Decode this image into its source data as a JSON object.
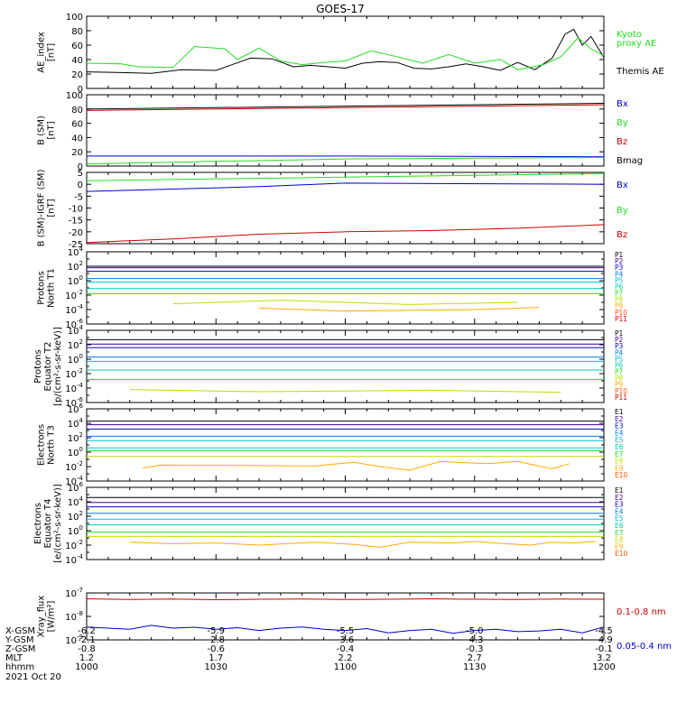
{
  "title": "GOES-17",
  "colors": {
    "black": "#000000",
    "red": "#cc0000",
    "green": "#22dd22",
    "blue": "#0000cc",
    "series": [
      "#000000",
      "#440088",
      "#0000cc",
      "#0077ee",
      "#00bbdd",
      "#00ccaa",
      "#22dd22",
      "#bbdd00",
      "#ffaa00",
      "#ff5500",
      "#cc0000"
    ]
  },
  "panels": [
    {
      "id": "ae",
      "ylabel": [
        "AE_index",
        "[nT]"
      ],
      "scale": "linear",
      "ylim": [
        0,
        100
      ],
      "yticks": [
        0,
        20,
        40,
        60,
        80,
        100
      ],
      "legend": [
        {
          "text": "Kyoto",
          "color": "#22dd22"
        },
        {
          "text": "proxy AE",
          "color": "#22dd22"
        },
        {
          "text": "Themis AE",
          "color": "#000000"
        }
      ]
    },
    {
      "id": "b",
      "ylabel": [
        "B (SM)",
        "[nT]"
      ],
      "scale": "linear",
      "ylim": [
        0,
        100
      ],
      "yticks": [
        0,
        20,
        40,
        60,
        80,
        100
      ],
      "legend": [
        {
          "text": "Bx",
          "color": "#0000cc"
        },
        {
          "text": "By",
          "color": "#22dd22"
        },
        {
          "text": "Bz",
          "color": "#cc0000"
        },
        {
          "text": "Bmag",
          "color": "#000000"
        }
      ]
    },
    {
      "id": "bigrf",
      "ylabel": [
        "B (SM)-IGRF (SM)",
        "[nT]"
      ],
      "scale": "linear",
      "ylim": [
        -25,
        5
      ],
      "yticks": [
        -25,
        -20,
        -15,
        -10,
        -5,
        0,
        5
      ],
      "legend": [
        {
          "text": "Bx",
          "color": "#0000cc"
        },
        {
          "text": "By",
          "color": "#22dd22"
        },
        {
          "text": "Bz",
          "color": "#cc0000"
        }
      ]
    },
    {
      "id": "pn",
      "ylabel": [
        "Protons",
        "North T1"
      ],
      "scale": "log",
      "ylim": [
        -6,
        4
      ],
      "yticks": [
        -6,
        -4,
        -2,
        0,
        2,
        4
      ],
      "legend_labels": [
        "P1",
        "P2",
        "P3",
        "P4",
        "P5",
        "P6",
        "P7",
        "P8",
        "P9",
        "P10",
        "P11"
      ]
    },
    {
      "id": "pe",
      "ylabel": [
        "Protons",
        "Equator T2",
        "[p/(cm²-s-sr-keV)]"
      ],
      "scale": "log",
      "ylim": [
        -6,
        4
      ],
      "yticks": [
        -6,
        -4,
        -2,
        0,
        2,
        4
      ],
      "legend_labels": [
        "P1",
        "P2",
        "P3",
        "P4",
        "P5",
        "P6",
        "P7",
        "P8",
        "P9",
        "P10",
        "P11"
      ]
    },
    {
      "id": "en",
      "ylabel": [
        "Electrons",
        "North T3"
      ],
      "scale": "log",
      "ylim": [
        -4,
        6
      ],
      "yticks": [
        -4,
        -2,
        0,
        2,
        4,
        6
      ],
      "legend_labels": [
        "E1",
        "E2",
        "E3",
        "E4",
        "E5",
        "E6",
        "E7",
        "E8",
        "E9",
        "E10"
      ]
    },
    {
      "id": "ee",
      "ylabel": [
        "Electrons",
        "Equator T4",
        "[e/(cm²-s-sr-keV)]"
      ],
      "scale": "log",
      "ylim": [
        -4,
        6
      ],
      "yticks": [
        -4,
        -2,
        0,
        2,
        4,
        6
      ],
      "legend_labels": [
        "E1",
        "E2",
        "E3",
        "E4",
        "E5",
        "E6",
        "E7",
        "E8",
        "E9",
        "E10"
      ]
    },
    {
      "id": "xray",
      "ylabel": [
        "Xray_flux",
        "[W/m²]"
      ],
      "scale": "log",
      "ylim": [
        -9,
        -7
      ],
      "yticks": [
        -9,
        -8,
        -7
      ],
      "legend": [
        {
          "text": "0.1-0.8 nm",
          "color": "#cc0000"
        },
        {
          "text": "0.05-0.4 nm",
          "color": "#0000cc"
        }
      ]
    }
  ],
  "xaxis": {
    "rows": [
      "X-GSM",
      "Y-GSM",
      "Z-GSM",
      "MLT",
      "hhmm",
      "2021 Oct 20"
    ],
    "ticks": [
      {
        "hhmm": "1000",
        "values": [
          "-6.2",
          "-2.1",
          "-0.8",
          "1.2"
        ]
      },
      {
        "hhmm": "1030",
        "values": [
          "-5.9",
          "-2.8",
          "-0.6",
          "1.7"
        ]
      },
      {
        "hhmm": "1100",
        "values": [
          "-5.5",
          "-3.6",
          "-0.4",
          "2.2"
        ]
      },
      {
        "hhmm": "1130",
        "values": [
          "-5.0",
          "-4.3",
          "-0.3",
          "2.7"
        ]
      },
      {
        "hhmm": "1200",
        "values": [
          "-4.5",
          "-4.9",
          "-0.1",
          "3.2"
        ]
      }
    ]
  },
  "chart_data": {
    "type": "line",
    "title": "GOES-17",
    "x_unit": "minutes since 10:00 UT",
    "xlim": [
      0,
      120
    ],
    "series": [
      {
        "panel": "ae",
        "name": "Themis AE",
        "color": "#000000",
        "x": [
          0,
          8,
          15,
          22,
          30,
          38,
          43,
          48,
          52,
          56,
          60,
          64,
          68,
          72,
          76,
          80,
          84,
          88,
          92,
          96,
          100,
          104,
          108,
          111,
          113,
          115,
          117,
          120
        ],
        "y": [
          23,
          22,
          21,
          26,
          25,
          42,
          41,
          30,
          32,
          30,
          28,
          35,
          37,
          36,
          28,
          27,
          30,
          34,
          30,
          25,
          36,
          26,
          42,
          75,
          82,
          60,
          72,
          43
        ]
      },
      {
        "panel": "ae",
        "name": "Kyoto proxy AE",
        "color": "#22dd22",
        "x": [
          0,
          8,
          12,
          20,
          25,
          32,
          35,
          40,
          45,
          50,
          55,
          60,
          66,
          72,
          78,
          84,
          90,
          96,
          100,
          106,
          110,
          114,
          117,
          120
        ],
        "y": [
          35,
          34,
          30,
          29,
          58,
          55,
          40,
          56,
          38,
          33,
          36,
          38,
          52,
          44,
          35,
          47,
          35,
          40,
          26,
          33,
          44,
          70,
          55,
          45
        ]
      },
      {
        "panel": "b",
        "name": "Bz",
        "color": "#cc0000",
        "x": [
          0,
          120
        ],
        "y": [
          78,
          86
        ]
      },
      {
        "panel": "b",
        "name": "Bmag",
        "color": "#000000",
        "x": [
          0,
          120
        ],
        "y": [
          80,
          88
        ]
      },
      {
        "panel": "b",
        "name": "Bx",
        "color": "#0000cc",
        "x": [
          0,
          60,
          120
        ],
        "y": [
          14,
          14,
          13
        ]
      },
      {
        "panel": "b",
        "name": "By",
        "color": "#22dd22",
        "x": [
          0,
          60,
          120
        ],
        "y": [
          3,
          10,
          12
        ]
      },
      {
        "panel": "bigrf",
        "name": "Bx",
        "color": "#0000cc",
        "x": [
          0,
          40,
          60,
          120
        ],
        "y": [
          -3,
          -1,
          0.5,
          0
        ]
      },
      {
        "panel": "bigrf",
        "name": "By",
        "color": "#22dd22",
        "x": [
          0,
          40,
          80,
          120
        ],
        "y": [
          1.5,
          2.5,
          3.5,
          4.5
        ]
      },
      {
        "panel": "bigrf",
        "name": "Bz",
        "color": "#cc0000",
        "x": [
          0,
          20,
          40,
          60,
          80,
          100,
          120
        ],
        "y": [
          -24.5,
          -23,
          -21,
          -20,
          -19.5,
          -18.5,
          -17
        ]
      },
      {
        "panel": "pn",
        "name": "P1",
        "x": [
          0,
          120
        ],
        "log10_y": [
          2,
          2
        ]
      },
      {
        "panel": "pn",
        "name": "P2",
        "x": [
          0,
          120
        ],
        "log10_y": [
          1.8,
          1.8
        ]
      },
      {
        "panel": "pn",
        "name": "P3",
        "x": [
          0,
          120
        ],
        "log10_y": [
          1.3,
          1.3
        ]
      },
      {
        "panel": "pn",
        "name": "P4",
        "x": [
          0,
          120
        ],
        "log10_y": [
          0.3,
          0.3
        ]
      },
      {
        "panel": "pn",
        "name": "P5",
        "x": [
          0,
          120
        ],
        "log10_y": [
          -0.2,
          -0.2
        ]
      },
      {
        "panel": "pn",
        "name": "P6",
        "x": [
          0,
          120
        ],
        "log10_y": [
          -1.1,
          -1.1
        ]
      },
      {
        "panel": "pn",
        "name": "P7",
        "x": [
          0,
          120
        ],
        "log10_y": [
          -1.8,
          -1.8
        ]
      },
      {
        "panel": "pn",
        "name": "P8",
        "x": [
          20,
          45,
          75,
          100
        ],
        "log10_y": [
          -3.2,
          -2.7,
          -3.3,
          -3.0
        ]
      },
      {
        "panel": "pn",
        "name": "P9",
        "x": [
          40,
          60,
          90,
          105
        ],
        "log10_y": [
          -3.8,
          -4.2,
          -4.0,
          -3.7
        ]
      },
      {
        "panel": "pe",
        "name": "P1",
        "x": [
          0,
          120
        ],
        "log10_y": [
          2.7,
          2.7
        ]
      },
      {
        "panel": "pe",
        "name": "P2",
        "x": [
          0,
          120
        ],
        "log10_y": [
          2.1,
          2.1
        ]
      },
      {
        "panel": "pe",
        "name": "P3",
        "x": [
          0,
          120
        ],
        "log10_y": [
          1.6,
          1.6
        ]
      },
      {
        "panel": "pe",
        "name": "P4",
        "x": [
          0,
          120
        ],
        "log10_y": [
          0.3,
          0.3
        ]
      },
      {
        "panel": "pe",
        "name": "P5",
        "x": [
          0,
          120
        ],
        "log10_y": [
          -0.3,
          -0.3
        ]
      },
      {
        "panel": "pe",
        "name": "P6",
        "x": [
          0,
          120
        ],
        "log10_y": [
          -1.5,
          -1.5
        ]
      },
      {
        "panel": "pe",
        "name": "P7",
        "x": [
          0,
          120
        ],
        "log10_y": [
          -2.8,
          -2.8
        ]
      },
      {
        "panel": "pe",
        "name": "P8",
        "x": [
          10,
          40,
          80,
          110
        ],
        "log10_y": [
          -4.2,
          -4.5,
          -4.3,
          -4.6
        ]
      },
      {
        "panel": "en",
        "name": "E1",
        "x": [
          0,
          120
        ],
        "log10_y": [
          4.3,
          4.3
        ]
      },
      {
        "panel": "en",
        "name": "E2",
        "x": [
          0,
          120
        ],
        "log10_y": [
          3.8,
          3.8
        ]
      },
      {
        "panel": "en",
        "name": "E3",
        "x": [
          0,
          120
        ],
        "log10_y": [
          3.2,
          3.2
        ]
      },
      {
        "panel": "en",
        "name": "E4",
        "x": [
          0,
          120
        ],
        "log10_y": [
          2.2,
          2.2
        ]
      },
      {
        "panel": "en",
        "name": "E5",
        "x": [
          0,
          120
        ],
        "log10_y": [
          1.6,
          1.6
        ]
      },
      {
        "panel": "en",
        "name": "E6",
        "x": [
          0,
          120
        ],
        "log10_y": [
          0.6,
          0.6
        ]
      },
      {
        "panel": "en",
        "name": "E7",
        "x": [
          0,
          120
        ],
        "log10_y": [
          0.2,
          0.2
        ]
      },
      {
        "panel": "en",
        "name": "E8",
        "x": [
          0,
          120
        ],
        "log10_y": [
          -0.6,
          -0.6
        ]
      },
      {
        "panel": "en",
        "name": "E9",
        "x": [
          13,
          17,
          53,
          62,
          68,
          75,
          82,
          93,
          100,
          108,
          112
        ],
        "log10_y": [
          -2.2,
          -1.8,
          -1.9,
          -1.4,
          -2.0,
          -2.5,
          -1.3,
          -1.6,
          -1.3,
          -2.3,
          -1.6
        ]
      },
      {
        "panel": "ee",
        "name": "E1",
        "x": [
          0,
          120
        ],
        "log10_y": [
          4.6,
          4.6
        ]
      },
      {
        "panel": "ee",
        "name": "E2",
        "x": [
          0,
          120
        ],
        "log10_y": [
          3.9,
          3.9
        ]
      },
      {
        "panel": "ee",
        "name": "E3",
        "x": [
          0,
          120
        ],
        "log10_y": [
          3.3,
          3.3
        ]
      },
      {
        "panel": "ee",
        "name": "E4",
        "x": [
          0,
          120
        ],
        "log10_y": [
          2.4,
          2.4
        ]
      },
      {
        "panel": "ee",
        "name": "E5",
        "x": [
          0,
          120
        ],
        "log10_y": [
          1.6,
          1.6
        ]
      },
      {
        "panel": "ee",
        "name": "E6",
        "x": [
          0,
          120
        ],
        "log10_y": [
          0.8,
          0.8
        ]
      },
      {
        "panel": "ee",
        "name": "E7",
        "x": [
          0,
          120
        ],
        "log10_y": [
          -0.2,
          -0.2
        ]
      },
      {
        "panel": "ee",
        "name": "E8",
        "x": [
          0,
          120
        ],
        "log10_y": [
          -0.8,
          -0.8
        ]
      },
      {
        "panel": "ee",
        "name": "E9",
        "x": [
          10,
          20,
          30,
          40,
          53,
          62,
          68,
          75,
          85,
          90,
          97,
          103,
          108,
          113,
          118
        ],
        "log10_y": [
          -1.6,
          -1.8,
          -1.7,
          -2.0,
          -1.6,
          -1.9,
          -2.3,
          -1.6,
          -1.7,
          -1.5,
          -1.8,
          -2.0,
          -1.6,
          -1.7,
          -1.5
        ]
      },
      {
        "panel": "xray",
        "name": "0.1-0.8 nm",
        "color": "#cc0000",
        "x": [
          0,
          10,
          20,
          30,
          40,
          50,
          60,
          70,
          80,
          90,
          100,
          110,
          120
        ],
        "log10_y": [
          -7.25,
          -7.28,
          -7.26,
          -7.29,
          -7.27,
          -7.26,
          -7.28,
          -7.27,
          -7.25,
          -7.27,
          -7.28,
          -7.26,
          -7.27
        ]
      },
      {
        "panel": "xray",
        "name": "0.05-0.4 nm",
        "color": "#0000cc",
        "x": [
          0,
          5,
          10,
          15,
          20,
          25,
          30,
          35,
          40,
          45,
          50,
          55,
          60,
          65,
          70,
          75,
          80,
          85,
          90,
          95,
          100,
          105,
          110,
          115,
          120
        ],
        "log10_y": [
          -8.45,
          -8.5,
          -8.55,
          -8.38,
          -8.5,
          -8.46,
          -8.55,
          -8.48,
          -8.6,
          -8.5,
          -8.45,
          -8.55,
          -8.6,
          -8.52,
          -8.7,
          -8.6,
          -8.55,
          -8.72,
          -8.6,
          -8.55,
          -8.65,
          -8.62,
          -8.55,
          -8.7,
          -8.45
        ]
      }
    ]
  }
}
